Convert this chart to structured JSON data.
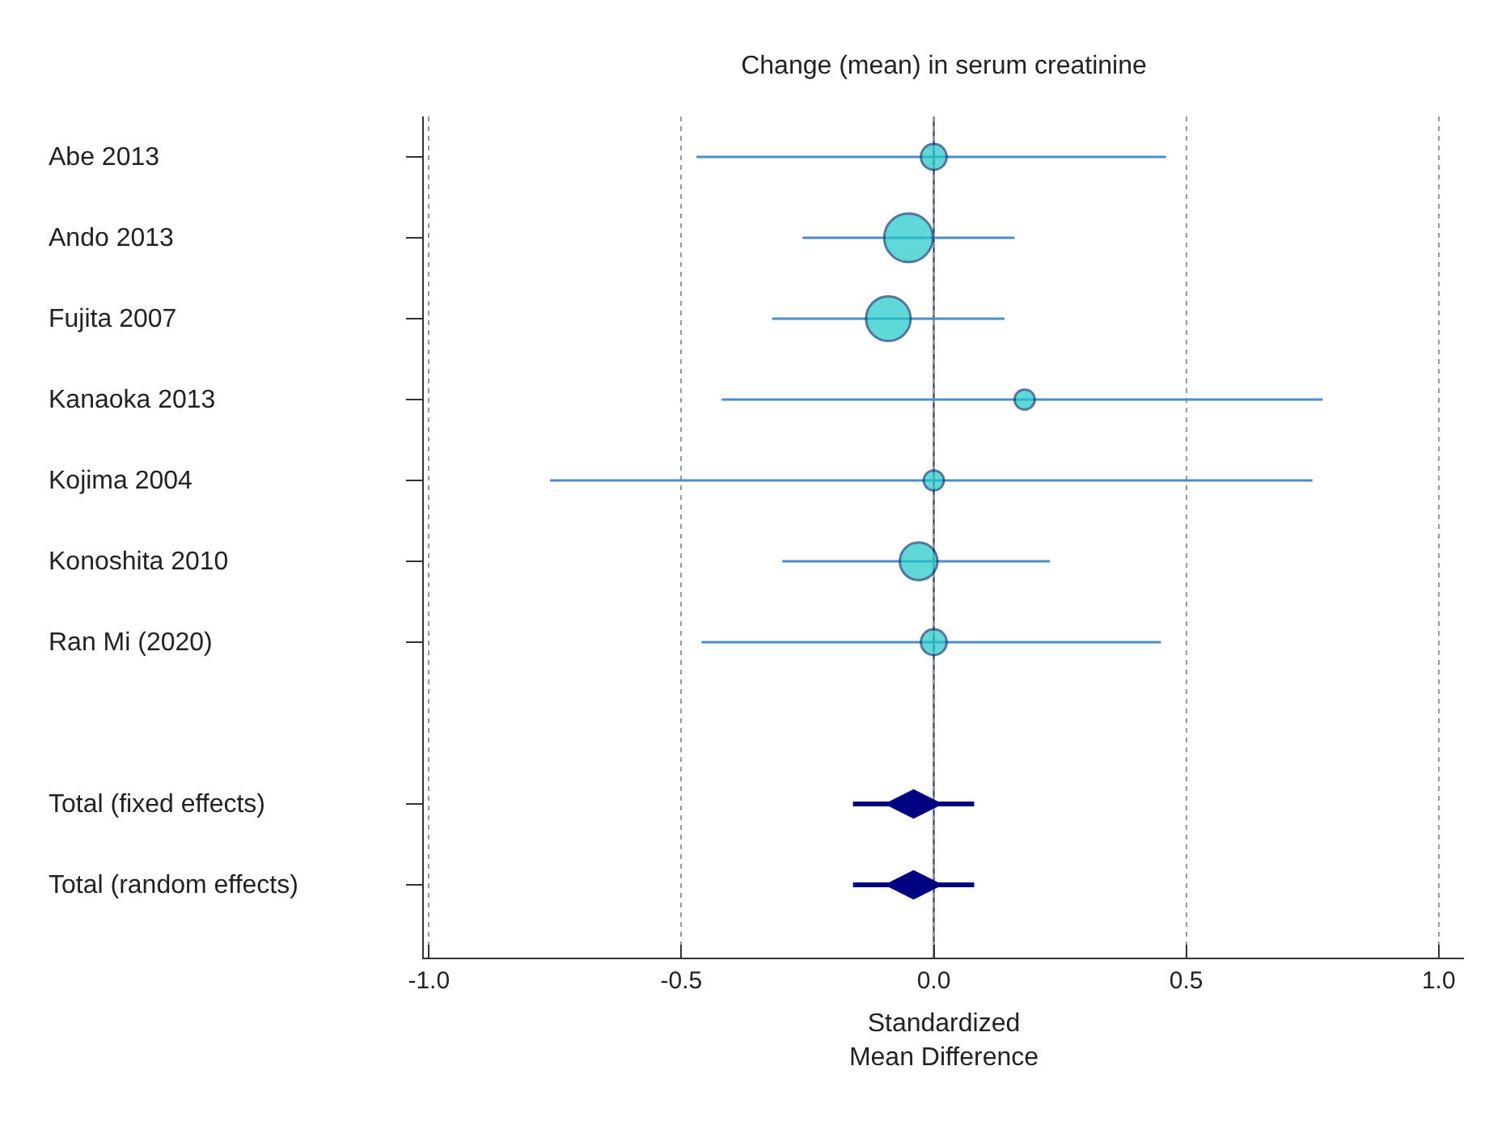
{
  "chart_data": {
    "type": "scatter",
    "orientation": "horizontal",
    "title": "Change (mean) in serum creatinine",
    "xlabel": "Standardized\nMean Difference",
    "categories": [
      "Abe 2013",
      "Ando 2013",
      "Fujita 2007",
      "Kanaoka 2013",
      "Kojima 2004",
      "Konoshita 2010",
      "Ran Mi (2020)",
      null,
      "Total (fixed effects)",
      "Total (random effects)"
    ],
    "series": [
      {
        "type": "scatter",
        "marker": "circle",
        "color": "#1fc8c8",
        "values": [
          0.0,
          -0.05,
          -0.09,
          0.18,
          0.0,
          -0.03,
          0.0,
          null,
          null,
          null
        ],
        "errors": [
          [
            -0.47,
            0.46
          ],
          [
            -0.26,
            0.16
          ],
          [
            -0.32,
            0.14
          ],
          [
            -0.42,
            0.77
          ],
          [
            -0.76,
            0.75
          ],
          [
            -0.3,
            0.23
          ],
          [
            -0.46,
            0.45
          ],
          null,
          null,
          null
        ],
        "sizes": [
          0.28,
          1,
          0.84,
          0.17,
          0.17,
          0.6,
          0.28,
          null,
          null,
          null
        ]
      },
      {
        "type": "scatter",
        "marker": "diamond",
        "color": "#000080",
        "values": [
          null,
          null,
          null,
          null,
          null,
          null,
          null,
          null,
          -0.04,
          -0.04
        ],
        "errors": [
          null,
          null,
          null,
          null,
          null,
          null,
          null,
          null,
          [
            -0.16,
            0.08
          ],
          [
            -0.16,
            0.08
          ]
        ]
      }
    ],
    "xlim": [
      -1.01,
      1.05
    ],
    "xticks": [
      {
        "value": -1,
        "label": "-1.0"
      },
      {
        "value": -0.5,
        "label": "-0.5"
      },
      {
        "value": 0,
        "label": "0.0"
      },
      {
        "value": 0.5,
        "label": "0.5"
      },
      {
        "value": 1,
        "label": "1.0"
      }
    ],
    "grid": "x",
    "ref_lines": [
      {
        "axis": "x",
        "value": 0,
        "color": "#1a2a5a",
        "line_style": "solid"
      }
    ]
  }
}
